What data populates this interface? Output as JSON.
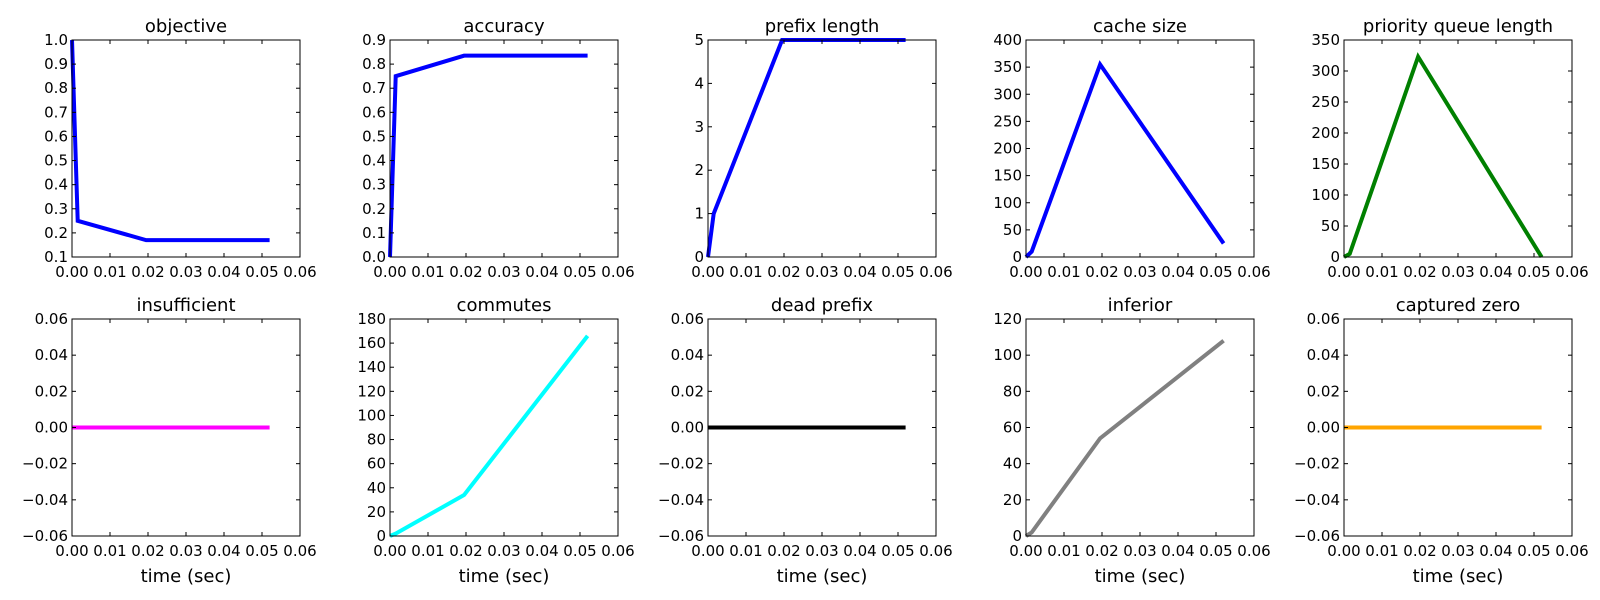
{
  "chart_data": [
    {
      "type": "line",
      "title": "objective",
      "xlabel": "",
      "color": "#0000ff",
      "x": [
        0.0,
        0.0015,
        0.0195,
        0.052
      ],
      "y": [
        1.0,
        0.25,
        0.17,
        0.17
      ],
      "xlim": [
        0,
        0.06
      ],
      "ylim": [
        0.1,
        1.0
      ],
      "xticks": [
        "0.00",
        "0.01",
        "0.02",
        "0.03",
        "0.04",
        "0.05",
        "0.06"
      ],
      "yticks": [
        "0.1",
        "0.2",
        "0.3",
        "0.4",
        "0.5",
        "0.6",
        "0.7",
        "0.8",
        "0.9",
        "1.0"
      ]
    },
    {
      "type": "line",
      "title": "accuracy",
      "xlabel": "",
      "color": "#0000ff",
      "x": [
        0.0,
        0.0015,
        0.0195,
        0.052
      ],
      "y": [
        0.0,
        0.75,
        0.835,
        0.835
      ],
      "xlim": [
        0,
        0.06
      ],
      "ylim": [
        0,
        0.9
      ],
      "xticks": [
        "0.00",
        "0.01",
        "0.02",
        "0.03",
        "0.04",
        "0.05",
        "0.06"
      ],
      "yticks": [
        "0.0",
        "0.1",
        "0.2",
        "0.3",
        "0.4",
        "0.5",
        "0.6",
        "0.7",
        "0.8",
        "0.9"
      ]
    },
    {
      "type": "line",
      "title": "prefix length",
      "xlabel": "",
      "color": "#0000ff",
      "x": [
        0.0,
        0.0015,
        0.0195,
        0.052
      ],
      "y": [
        0,
        1,
        5,
        5
      ],
      "xlim": [
        0,
        0.06
      ],
      "ylim": [
        0,
        5
      ],
      "xticks": [
        "0.00",
        "0.01",
        "0.02",
        "0.03",
        "0.04",
        "0.05",
        "0.06"
      ],
      "yticks": [
        "0",
        "1",
        "2",
        "3",
        "4",
        "5"
      ]
    },
    {
      "type": "line",
      "title": "cache size",
      "xlabel": "",
      "color": "#0000ff",
      "x": [
        0.0,
        0.0015,
        0.0195,
        0.052
      ],
      "y": [
        0,
        10,
        355,
        25
      ],
      "xlim": [
        0,
        0.06
      ],
      "ylim": [
        0,
        400
      ],
      "xticks": [
        "0.00",
        "0.01",
        "0.02",
        "0.03",
        "0.04",
        "0.05",
        "0.06"
      ],
      "yticks": [
        "0",
        "50",
        "100",
        "150",
        "200",
        "250",
        "300",
        "350",
        "400"
      ]
    },
    {
      "type": "line",
      "title": "priority queue length",
      "xlabel": "",
      "color": "#008000",
      "x": [
        0.0,
        0.0015,
        0.0195,
        0.052
      ],
      "y": [
        0,
        5,
        323,
        0
      ],
      "xlim": [
        0,
        0.06
      ],
      "ylim": [
        0,
        350
      ],
      "xticks": [
        "0.00",
        "0.01",
        "0.02",
        "0.03",
        "0.04",
        "0.05",
        "0.06"
      ],
      "yticks": [
        "0",
        "50",
        "100",
        "150",
        "200",
        "250",
        "300",
        "350"
      ]
    },
    {
      "type": "line",
      "title": "insufficient",
      "xlabel": "time (sec)",
      "color": "#ff00ff",
      "x": [
        0.0,
        0.052
      ],
      "y": [
        0,
        0
      ],
      "xlim": [
        0,
        0.06
      ],
      "ylim": [
        -0.06,
        0.06
      ],
      "xticks": [
        "0.00",
        "0.01",
        "0.02",
        "0.03",
        "0.04",
        "0.05",
        "0.06"
      ],
      "yticks": [
        "−0.06",
        "−0.04",
        "−0.02",
        "0.00",
        "0.02",
        "0.04",
        "0.06"
      ]
    },
    {
      "type": "line",
      "title": "commutes",
      "xlabel": "time (sec)",
      "color": "#00ffff",
      "x": [
        0.0,
        0.0015,
        0.0195,
        0.052
      ],
      "y": [
        0,
        2,
        34,
        166
      ],
      "xlim": [
        0,
        0.06
      ],
      "ylim": [
        0,
        180
      ],
      "xticks": [
        "0.00",
        "0.01",
        "0.02",
        "0.03",
        "0.04",
        "0.05",
        "0.06"
      ],
      "yticks": [
        "0",
        "20",
        "40",
        "60",
        "80",
        "100",
        "120",
        "140",
        "160",
        "180"
      ]
    },
    {
      "type": "line",
      "title": "dead prefix",
      "xlabel": "time (sec)",
      "color": "#000000",
      "x": [
        0.0,
        0.052
      ],
      "y": [
        0,
        0
      ],
      "xlim": [
        0,
        0.06
      ],
      "ylim": [
        -0.06,
        0.06
      ],
      "xticks": [
        "0.00",
        "0.01",
        "0.02",
        "0.03",
        "0.04",
        "0.05",
        "0.06"
      ],
      "yticks": [
        "−0.06",
        "−0.04",
        "−0.02",
        "0.00",
        "0.02",
        "0.04",
        "0.06"
      ]
    },
    {
      "type": "line",
      "title": "inferior",
      "xlabel": "time (sec)",
      "color": "#808080",
      "x": [
        0.0,
        0.0015,
        0.0195,
        0.052
      ],
      "y": [
        0,
        2,
        54,
        108
      ],
      "xlim": [
        0,
        0.06
      ],
      "ylim": [
        0,
        120
      ],
      "xticks": [
        "0.00",
        "0.01",
        "0.02",
        "0.03",
        "0.04",
        "0.05",
        "0.06"
      ],
      "yticks": [
        "0",
        "20",
        "40",
        "60",
        "80",
        "100",
        "120"
      ]
    },
    {
      "type": "line",
      "title": "captured zero",
      "xlabel": "time (sec)",
      "color": "#ffa500",
      "x": [
        0.0,
        0.052
      ],
      "y": [
        0,
        0
      ],
      "xlim": [
        0,
        0.06
      ],
      "ylim": [
        -0.06,
        0.06
      ],
      "xticks": [
        "0.00",
        "0.01",
        "0.02",
        "0.03",
        "0.04",
        "0.05",
        "0.06"
      ],
      "yticks": [
        "−0.06",
        "−0.04",
        "−0.02",
        "0.00",
        "0.02",
        "0.04",
        "0.06"
      ]
    }
  ]
}
